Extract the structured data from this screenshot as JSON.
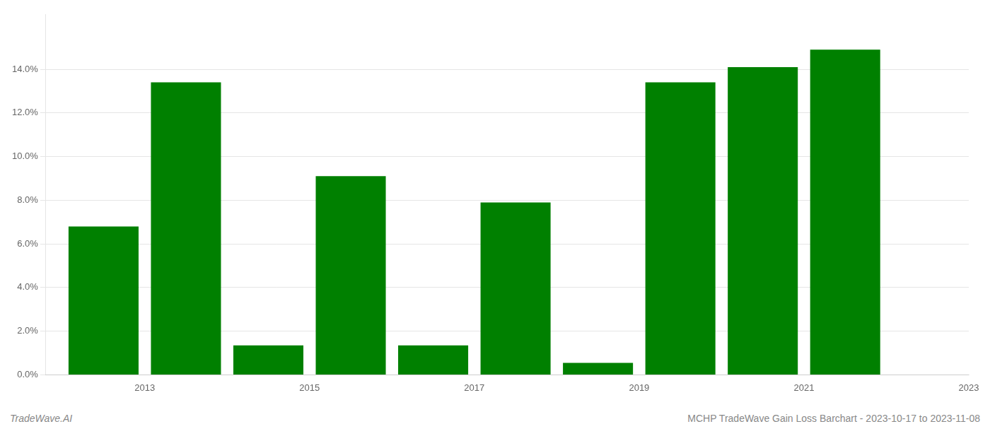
{
  "chart_data": {
    "type": "bar",
    "x": [
      2013,
      2014,
      2015,
      2016,
      2017,
      2018,
      2019,
      2020,
      2021,
      2022
    ],
    "values": [
      0.068,
      0.134,
      0.0135,
      0.091,
      0.0135,
      0.079,
      0.0055,
      0.134,
      0.141,
      0.149
    ],
    "color": "#008000",
    "xlim": [
      2012.3,
      2023.5
    ],
    "xticks": [
      {
        "value": 2013.5,
        "label": "2013"
      },
      {
        "value": 2015.5,
        "label": "2015"
      },
      {
        "value": 2017.5,
        "label": "2017"
      },
      {
        "value": 2019.5,
        "label": "2019"
      },
      {
        "value": 2021.5,
        "label": "2021"
      },
      {
        "value": 2023.5,
        "label": "2023"
      }
    ],
    "ylim": [
      0,
      0.165
    ],
    "yticks": [
      {
        "value": 0.0,
        "label": "0.0%"
      },
      {
        "value": 0.02,
        "label": "2.0%"
      },
      {
        "value": 0.04,
        "label": "4.0%"
      },
      {
        "value": 0.06,
        "label": "6.0%"
      },
      {
        "value": 0.08,
        "label": "8.0%"
      },
      {
        "value": 0.1,
        "label": "10.0%"
      },
      {
        "value": 0.12,
        "label": "12.0%"
      },
      {
        "value": 0.14,
        "label": "14.0%"
      }
    ],
    "grid": "y",
    "annotations": [
      "TradeWave.AI",
      "MCHP TradeWave Gain Loss Barchart - 2023-10-17 to 2023-11-08"
    ]
  }
}
